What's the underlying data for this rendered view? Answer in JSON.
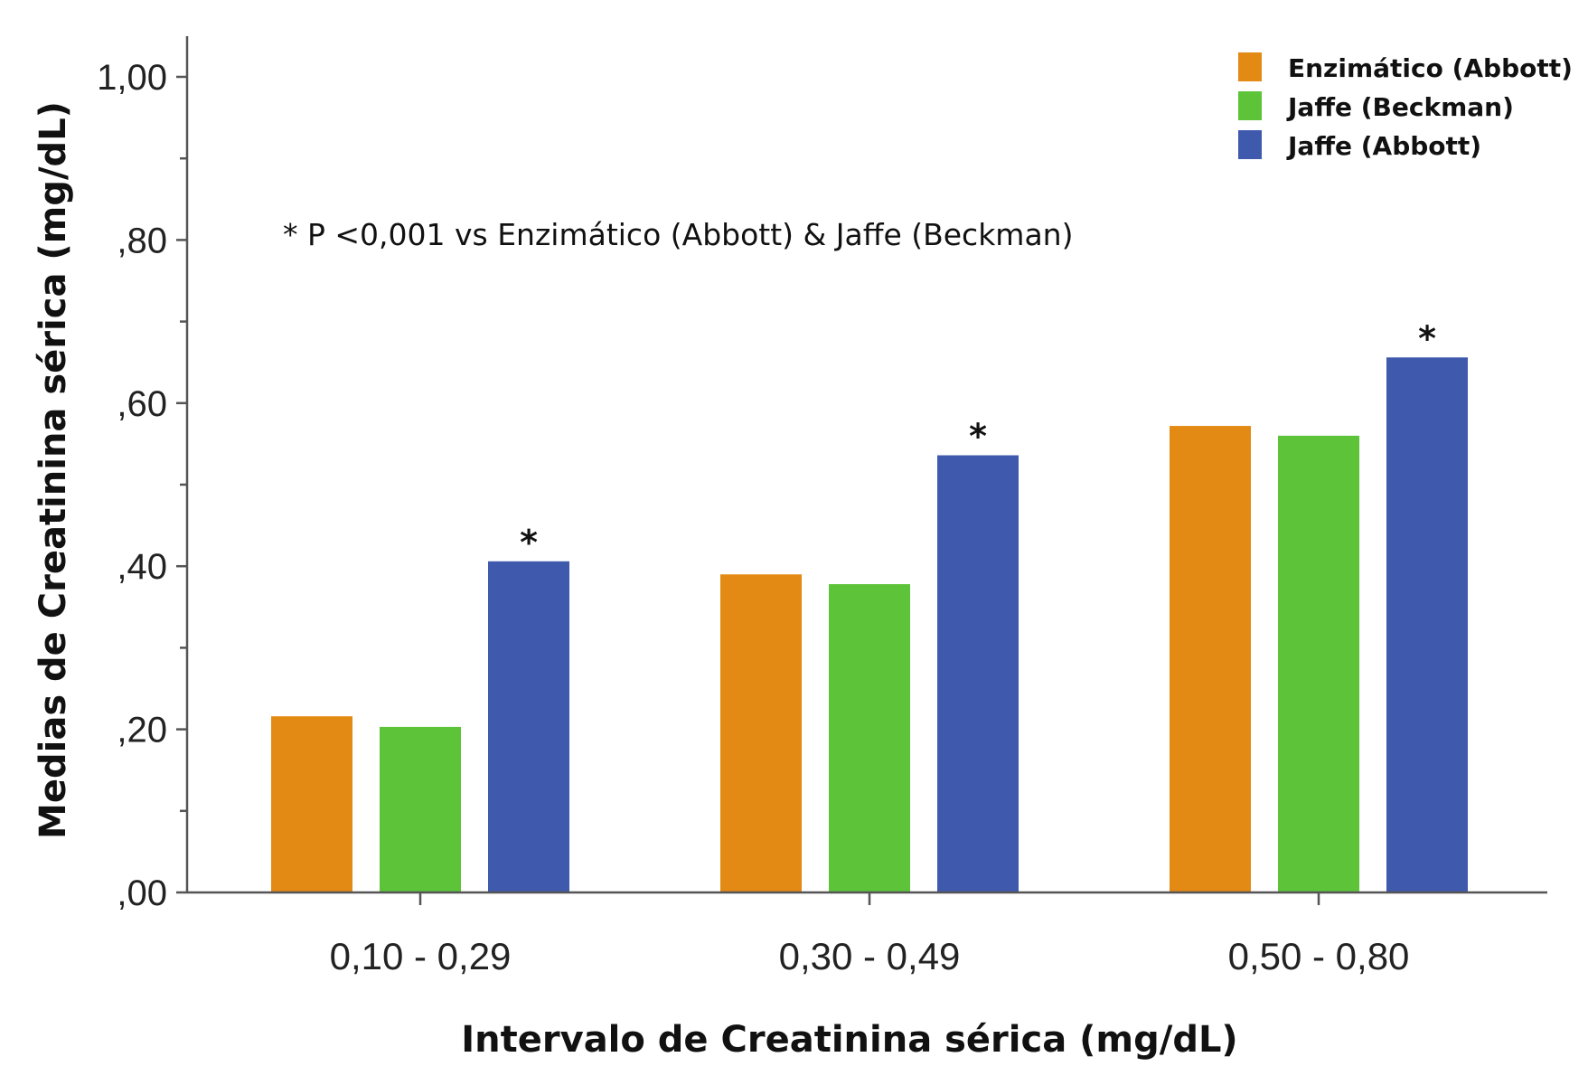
{
  "chart_data": {
    "type": "bar",
    "title": "",
    "xlabel": "Intervalo de Creatinina sérica (mg/dL)",
    "ylabel": "Medias de Creatinina sérica (mg/dL)",
    "ylim": [
      0,
      1.0
    ],
    "yticks": [
      {
        "value": 0.0,
        "label": ",00"
      },
      {
        "value": 0.2,
        "label": ",20"
      },
      {
        "value": 0.4,
        "label": ",40"
      },
      {
        "value": 0.6,
        "label": ",60"
      },
      {
        "value": 0.8,
        "label": ",80"
      },
      {
        "value": 1.0,
        "label": "1,00"
      }
    ],
    "categories": [
      "0,10 - 0,29",
      "0,30 - 0,49",
      "0,50 - 0,80"
    ],
    "series": [
      {
        "name": "Enzimático (Abbott)",
        "color": "#E38A14",
        "values": [
          0.216,
          0.39,
          0.572
        ]
      },
      {
        "name": "Jaffe (Beckman)",
        "color": "#5DC43A",
        "values": [
          0.203,
          0.378,
          0.56
        ]
      },
      {
        "name": "Jaffe (Abbott)",
        "color": "#3F5AAD",
        "values": [
          0.406,
          0.536,
          0.656
        ]
      }
    ],
    "legend": {
      "position": "top-right"
    },
    "annotation": "*  P <0,001 vs Enzimático (Abbott) & Jaffe (Beckman)",
    "significance": {
      "marker": "*",
      "series": "Jaffe (Abbott)",
      "categories": [
        0,
        1,
        2
      ]
    },
    "grid": false
  }
}
